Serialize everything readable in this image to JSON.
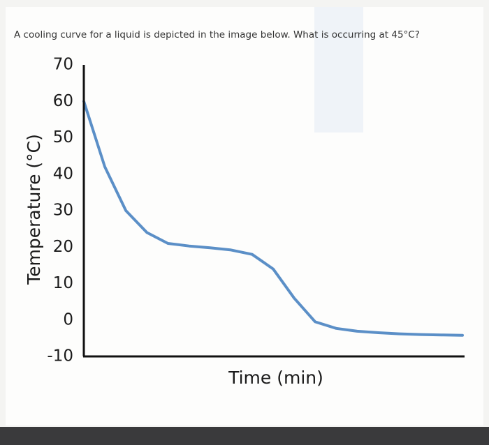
{
  "question": "A cooling curve for a liquid is depicted in the image below. What is occurring at 45°C?",
  "chart_data": {
    "type": "line",
    "y_label": "Temperature (°C)",
    "x_label": "Time (min)",
    "categories": [
      null,
      null,
      null,
      null,
      null,
      null,
      null,
      null,
      null,
      null,
      null,
      null,
      null,
      null,
      null,
      null,
      null,
      null,
      null
    ],
    "values": [
      60,
      42,
      30,
      24,
      21,
      20.3,
      19.8,
      19.2,
      18,
      14,
      6,
      -0.5,
      -2.3,
      -3.1,
      -3.5,
      -3.8,
      -4,
      -4.1,
      -4.2
    ],
    "color": "#5b8fc7",
    "ylim": [
      -10,
      70
    ],
    "yticks": [
      -10,
      0,
      10,
      20,
      30,
      40,
      50,
      60,
      70
    ],
    "grid": false
  }
}
